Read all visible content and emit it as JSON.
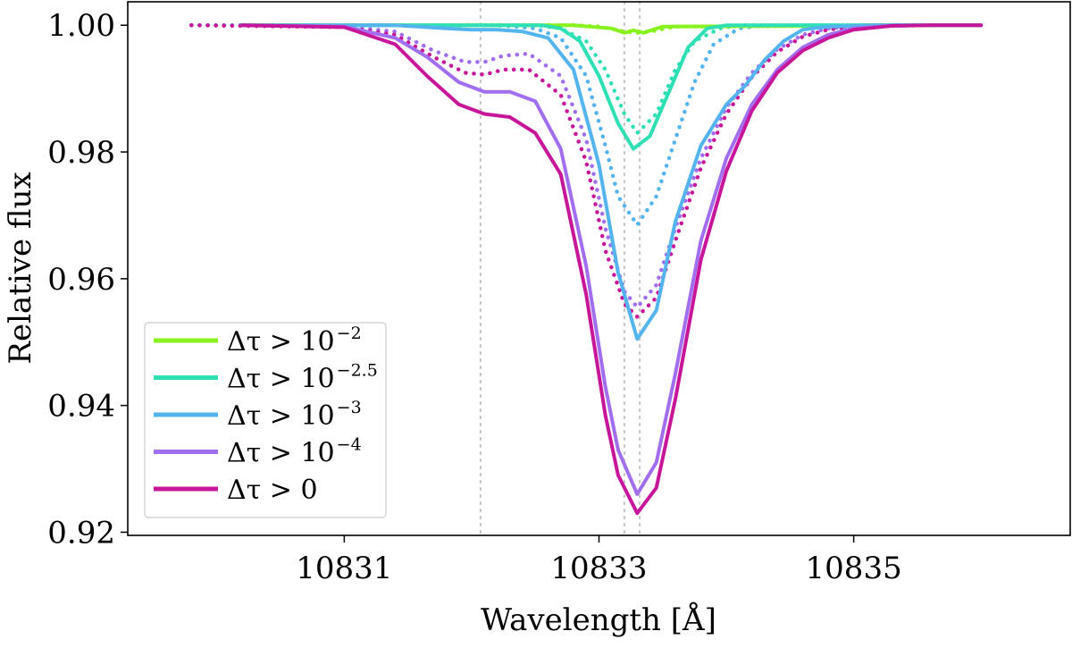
{
  "chart_data": {
    "type": "line",
    "title": "",
    "xlabel": "Wavelength [Å]",
    "ylabel": "Relative flux",
    "xlim": [
      10829.3,
      10836.7
    ],
    "ylim": [
      0.9195,
      1.0037
    ],
    "xticks": [
      10831,
      10833,
      10835
    ],
    "xtick_labels": [
      "10831",
      "10833",
      "10835"
    ],
    "yticks": [
      0.92,
      0.94,
      0.96,
      0.98,
      1.0
    ],
    "ytick_labels": [
      "0.92",
      "0.94",
      "0.96",
      "0.98",
      "1.00"
    ],
    "grid": false,
    "legend_position": "lower-left",
    "reference_lines_x": [
      10832.07,
      10833.2,
      10833.32
    ],
    "legend": [
      {
        "label": "Δτ > 10",
        "exponent": "−2"
      },
      {
        "label": "Δτ > 10",
        "exponent": "−2.5"
      },
      {
        "label": "Δτ > 10",
        "exponent": "−3"
      },
      {
        "label": "Δτ > 10",
        "exponent": "−4"
      },
      {
        "label": "Δτ > 0",
        "exponent": ""
      }
    ],
    "series": [
      {
        "name": "Δτ > 10^-2",
        "color": "#88f21e",
        "style": "solid",
        "x": [
          10830.2,
          10832.8,
          10833.1,
          10833.2,
          10833.27,
          10833.35,
          10833.5,
          10836.0
        ],
        "y": [
          1.0,
          1.0,
          0.9995,
          0.9988,
          0.9992,
          0.9988,
          0.9998,
          1.0
        ]
      },
      {
        "name": "Δτ > 10^-2 (dotted)",
        "color": "#88f21e",
        "style": "dotted",
        "x": [
          10829.8,
          10832.8,
          10833.0,
          10833.2,
          10833.3,
          10833.4,
          10833.6,
          10836.0
        ],
        "y": [
          1.0,
          1.0,
          0.9998,
          0.999,
          0.9988,
          0.999,
          0.9998,
          1.0
        ]
      },
      {
        "name": "Δτ > 10^-2.5",
        "color": "#2ee0b3",
        "style": "solid",
        "x": [
          10830.2,
          10832.4,
          10832.55,
          10832.7,
          10832.85,
          10833.0,
          10833.15,
          10833.27,
          10833.4,
          10833.55,
          10833.7,
          10833.85,
          10834.0,
          10836.0
        ],
        "y": [
          1.0,
          1.0,
          1.0,
          0.9995,
          0.9975,
          0.992,
          0.9845,
          0.9805,
          0.9825,
          0.9895,
          0.9965,
          0.9995,
          1.0,
          1.0
        ]
      },
      {
        "name": "Δτ > 10^-2.5 (dotted)",
        "color": "#2ee0b3",
        "style": "dotted",
        "x": [
          10829.8,
          10832.5,
          10832.7,
          10832.9,
          10833.05,
          10833.2,
          10833.3,
          10833.45,
          10833.6,
          10833.75,
          10833.95,
          10834.1,
          10836.0
        ],
        "y": [
          1.0,
          1.0,
          0.9995,
          0.9975,
          0.993,
          0.986,
          0.983,
          0.986,
          0.993,
          0.9975,
          0.9995,
          1.0,
          1.0
        ]
      },
      {
        "name": "Δτ > 10^-3",
        "color": "#54b4ee",
        "style": "solid",
        "x": [
          10830.2,
          10831.4,
          10831.8,
          10832.0,
          10832.2,
          10832.4,
          10832.6,
          10832.8,
          10833.0,
          10833.15,
          10833.3,
          10833.45,
          10833.6,
          10833.8,
          10834.0,
          10834.15,
          10834.3,
          10834.45,
          10834.6,
          10834.8,
          10835.2,
          10836.0
        ],
        "y": [
          1.0,
          1.0,
          0.9995,
          0.9993,
          0.9993,
          0.999,
          0.998,
          0.993,
          0.978,
          0.961,
          0.9505,
          0.955,
          0.969,
          0.981,
          0.9875,
          0.9905,
          0.9945,
          0.9975,
          0.9993,
          0.9998,
          1.0,
          1.0
        ]
      },
      {
        "name": "Δτ > 10^-3 (dotted)",
        "color": "#54b4ee",
        "style": "dotted",
        "x": [
          10829.8,
          10832.2,
          10832.5,
          10832.7,
          10832.9,
          10833.05,
          10833.15,
          10833.3,
          10833.45,
          10833.6,
          10833.75,
          10833.9,
          10834.1,
          10834.3,
          10836.0
        ],
        "y": [
          1.0,
          1.0,
          0.9995,
          0.998,
          0.992,
          0.981,
          0.973,
          0.9685,
          0.973,
          0.982,
          0.991,
          0.997,
          0.9995,
          1.0,
          1.0
        ]
      },
      {
        "name": "Δτ > 10^-4",
        "color": "#a26ef0",
        "style": "solid",
        "x": [
          10830.2,
          10831.0,
          10831.4,
          10831.65,
          10831.9,
          10832.1,
          10832.3,
          10832.5,
          10832.7,
          10832.9,
          10833.05,
          10833.15,
          10833.3,
          10833.45,
          10833.6,
          10833.8,
          10834.0,
          10834.2,
          10834.4,
          10834.6,
          10834.8,
          10835.0,
          10835.3,
          10835.6,
          10836.0
        ],
        "y": [
          1.0,
          0.9998,
          0.998,
          0.995,
          0.991,
          0.9895,
          0.9895,
          0.988,
          0.9805,
          0.962,
          0.943,
          0.933,
          0.926,
          0.931,
          0.945,
          0.966,
          0.979,
          0.9875,
          0.993,
          0.9965,
          0.9985,
          0.9995,
          0.9999,
          1.0,
          1.0
        ]
      },
      {
        "name": "Δτ > 10^-4 (dotted)",
        "color": "#a26ef0",
        "style": "dotted",
        "x": [
          10829.8,
          10831.0,
          10831.4,
          10831.7,
          10831.95,
          10832.1,
          10832.25,
          10832.45,
          10832.7,
          10832.9,
          10833.05,
          10833.2,
          10833.3,
          10833.45,
          10833.6,
          10833.8,
          10834.0,
          10834.2,
          10834.4,
          10834.6,
          10834.8,
          10835.1,
          10836.0
        ],
        "y": [
          1.0,
          0.9998,
          0.999,
          0.996,
          0.9942,
          0.9942,
          0.9952,
          0.9955,
          0.992,
          0.982,
          0.968,
          0.958,
          0.9555,
          0.959,
          0.968,
          0.979,
          0.987,
          0.9925,
          0.9962,
          0.9985,
          0.9995,
          1.0,
          1.0
        ]
      },
      {
        "name": "Δτ > 0",
        "color": "#c8169b",
        "style": "solid",
        "x": [
          10830.2,
          10831.0,
          10831.4,
          10831.65,
          10831.9,
          10832.1,
          10832.3,
          10832.5,
          10832.7,
          10832.9,
          10833.05,
          10833.15,
          10833.3,
          10833.45,
          10833.6,
          10833.8,
          10834.0,
          10834.2,
          10834.4,
          10834.6,
          10834.8,
          10835.0,
          10835.3,
          10835.6,
          10836.0
        ],
        "y": [
          1.0,
          0.9997,
          0.997,
          0.992,
          0.9875,
          0.986,
          0.9855,
          0.983,
          0.9765,
          0.9575,
          0.9385,
          0.929,
          0.923,
          0.927,
          0.941,
          0.963,
          0.977,
          0.9865,
          0.9925,
          0.996,
          0.998,
          0.9993,
          0.9999,
          1.0,
          1.0
        ]
      },
      {
        "name": "Δτ > 0 (dotted)",
        "color": "#c8169b",
        "style": "dotted",
        "x": [
          10829.8,
          10831.0,
          10831.4,
          10831.7,
          10831.95,
          10832.1,
          10832.25,
          10832.45,
          10832.7,
          10832.9,
          10833.05,
          10833.2,
          10833.3,
          10833.45,
          10833.6,
          10833.8,
          10834.0,
          10834.2,
          10834.4,
          10834.6,
          10834.8,
          10835.1,
          10836.0
        ],
        "y": [
          1.0,
          0.9997,
          0.9985,
          0.995,
          0.9925,
          0.9922,
          0.993,
          0.993,
          0.989,
          0.9785,
          0.9645,
          0.956,
          0.954,
          0.957,
          0.966,
          0.9775,
          0.986,
          0.9918,
          0.9958,
          0.9982,
          0.9993,
          1.0,
          1.0
        ]
      }
    ]
  }
}
